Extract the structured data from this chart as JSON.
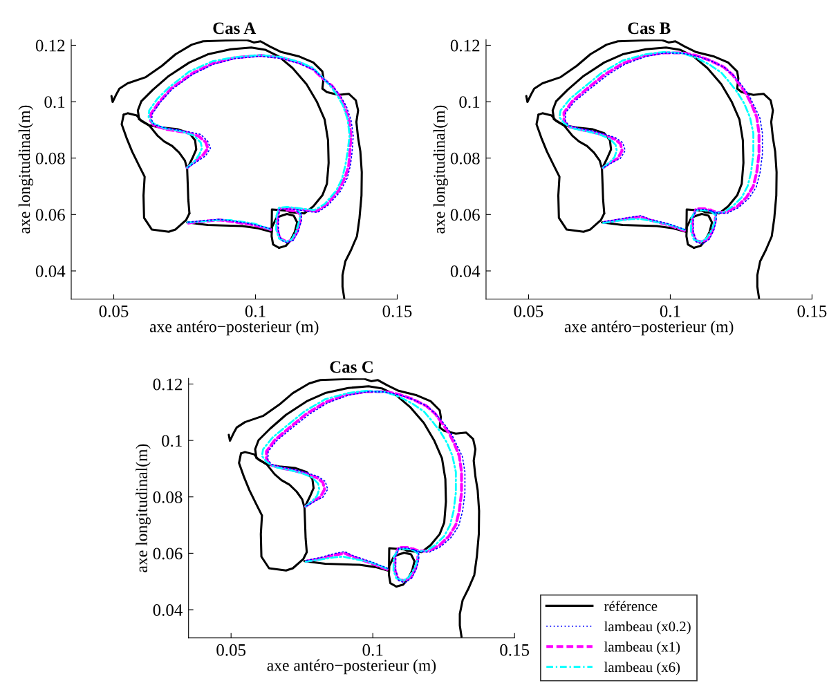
{
  "chart_data": [
    {
      "type": "line",
      "title": "Cas A",
      "xlabel": "axe antéro−posterieur (m)",
      "ylabel": "axe longitudinal(m)",
      "xlim": [
        0.035,
        0.15
      ],
      "ylim": [
        0.03,
        0.122
      ],
      "xticks": [
        0.05,
        0.1,
        0.15
      ],
      "yticks": [
        0.04,
        0.06,
        0.08,
        0.1,
        0.12
      ],
      "marker": "none",
      "series": [
        {
          "color": "#000000",
          "line_style": "solid",
          "x": [
            0.0492,
            0.0496,
            0.0508,
            0.052,
            0.0549,
            0.0613,
            0.067,
            0.0718,
            0.0775,
            0.0815,
            0.0896,
            0.0969,
            0.0994,
            0.1018,
            0.105,
            0.1091,
            0.1155,
            0.1204,
            0.1236,
            0.124,
            0.1236,
            0.1252,
            0.1293,
            0.1329,
            0.1354,
            0.1362,
            0.1356,
            0.1362,
            0.137,
            0.1375,
            0.1374,
            0.1367,
            0.1358,
            0.1337,
            0.1317,
            0.1307,
            0.1307,
            0.1313
          ],
          "values": [
            0.102,
            0.0999,
            0.1024,
            0.1046,
            0.1065,
            0.1087,
            0.1127,
            0.1168,
            0.1202,
            0.1214,
            0.1217,
            0.1219,
            0.121,
            0.1214,
            0.1196,
            0.1176,
            0.116,
            0.1139,
            0.1107,
            0.1083,
            0.1046,
            0.1034,
            0.1024,
            0.1028,
            0.1005,
            0.0969,
            0.0928,
            0.0872,
            0.0823,
            0.075,
            0.0668,
            0.0588,
            0.0523,
            0.0474,
            0.0434,
            0.0385,
            0.0344,
            0.0304
          ]
        },
        {
          "color": "#000000",
          "line_style": "solid",
          "x": [
            0.0589,
            0.0585,
            0.0597,
            0.0638,
            0.0694,
            0.0767,
            0.0832,
            0.0913,
            0.0985,
            0.1034,
            0.1083,
            0.1131,
            0.118,
            0.1216,
            0.1244,
            0.1256,
            0.1258,
            0.1252,
            0.1236,
            0.1204,
            0.1172,
            0.1123,
            0.1111,
            0.1058,
            0.1057
          ],
          "values": [
            0.0941,
            0.0969,
            0.1001,
            0.1042,
            0.1091,
            0.1139,
            0.1168,
            0.1186,
            0.1192,
            0.1184,
            0.116,
            0.1119,
            0.1062,
            0.1001,
            0.0937,
            0.0863,
            0.0783,
            0.0709,
            0.0668,
            0.0629,
            0.0604,
            0.0608,
            0.0614,
            0.0618,
            0.0539
          ]
        },
        {
          "color": "#000000",
          "line_style": "solid",
          "x": [
            0.0759,
            0.0832,
            0.0953,
            0.101,
            0.1057
          ],
          "values": [
            0.0572,
            0.0563,
            0.0559,
            0.0551,
            0.0538
          ]
        },
        {
          "color": "#000000",
          "line_style": "solid",
          "x": [
            0.0589,
            0.0625,
            0.067,
            0.0727,
            0.0767,
            0.0787,
            0.0791,
            0.0779,
            0.0763
          ],
          "values": [
            0.0938,
            0.0916,
            0.0908,
            0.0902,
            0.0888,
            0.0863,
            0.0831,
            0.0803,
            0.077
          ]
        },
        {
          "color": "#000000",
          "line_style": "solid",
          "x": [
            0.0535,
            0.0549,
            0.0581,
            0.0597,
            0.0625,
            0.0654,
            0.0678,
            0.0706,
            0.0731,
            0.0751,
            0.0759,
            0.0761,
            0.0763,
            0.0767,
            0.0755,
            0.0718,
            0.0694,
            0.0634,
            0.0607,
            0.0605,
            0.0609,
            0.0589,
            0.0565,
            0.0545,
            0.0528,
            0.0535
          ],
          "values": [
            0.0954,
            0.0959,
            0.0951,
            0.0932,
            0.0916,
            0.088,
            0.0859,
            0.0843,
            0.0819,
            0.0791,
            0.0762,
            0.0709,
            0.0653,
            0.0604,
            0.058,
            0.0547,
            0.0539,
            0.0547,
            0.0588,
            0.0668,
            0.0734,
            0.0774,
            0.0823,
            0.0872,
            0.092,
            0.0954
          ]
        },
        {
          "color": "#000000",
          "line_style": "solid",
          "x": [
            0.1111,
            0.1135,
            0.1147,
            0.1139,
            0.1123,
            0.1107,
            0.1083,
            0.1062,
            0.1057,
            0.1058,
            0.1074,
            0.1087,
            0.1111
          ],
          "values": [
            0.0602,
            0.0596,
            0.0572,
            0.0539,
            0.0507,
            0.0489,
            0.0482,
            0.0494,
            0.0523,
            0.0555,
            0.0588,
            0.0594,
            0.0602
          ]
        },
        {
          "color": "#0000ff",
          "line_style": "dotted",
          "x": [
            0.0763,
            0.0799,
            0.0824,
            0.0841,
            0.0832,
            0.0807,
            0.0751,
            0.0686,
            0.0642,
            0.0634,
            0.0636,
            0.0666,
            0.0706,
            0.0779,
            0.0852,
            0.0929,
            0.1018,
            0.1091,
            0.1155,
            0.1208,
            0.124,
            0.1273,
            0.1301,
            0.1321,
            0.1337,
            0.1345,
            0.1341,
            0.1335,
            0.1324,
            0.1299,
            0.1256,
            0.122,
            0.1188,
            0.1147,
            0.1111,
            0.1084,
            0.1081,
            0.1081,
            0.1092,
            0.1111,
            0.1133,
            0.115,
            0.1162,
            0.1162,
            0.1147,
            null,
            0.1052,
            0.0994,
            0.0913,
            0.0872,
            0.0815,
            0.0763
          ],
          "values": [
            0.0768,
            0.0791,
            0.0808,
            0.0835,
            0.0859,
            0.0884,
            0.0896,
            0.0906,
            0.0919,
            0.0935,
            0.0957,
            0.1,
            0.1044,
            0.1097,
            0.1133,
            0.1153,
            0.1161,
            0.1153,
            0.1135,
            0.1112,
            0.1081,
            0.1054,
            0.1018,
            0.0983,
            0.0935,
            0.088,
            0.0823,
            0.0774,
            0.073,
            0.0681,
            0.0633,
            0.0608,
            0.061,
            0.0617,
            0.062,
            0.0618,
            0.0588,
            0.0539,
            0.0508,
            0.05,
            0.0508,
            0.0538,
            0.0578,
            0.0602,
            0.061,
            null,
            0.055,
            0.0565,
            0.0578,
            0.0583,
            0.0578,
            0.0573
          ]
        },
        {
          "color": "#ff00ff",
          "line_style": "dashed",
          "x": [
            0.0759,
            0.0791,
            0.0815,
            0.0832,
            0.0824,
            0.0799,
            0.0751,
            0.0686,
            0.0642,
            0.063,
            0.0631,
            0.0662,
            0.0702,
            0.0775,
            0.0848,
            0.0929,
            0.1018,
            0.1091,
            0.1155,
            0.1204,
            0.1236,
            0.1269,
            0.1297,
            0.1313,
            0.1329,
            0.1337,
            0.1333,
            0.1329,
            0.1317,
            0.1293,
            0.1252,
            0.1216,
            0.1188,
            0.1147,
            0.1111,
            0.1083,
            0.1078,
            0.1077,
            0.1087,
            0.1111,
            0.1131,
            0.1147,
            0.1159,
            0.1159,
            0.1143,
            0.1111,
            null,
            0.1054,
            0.0994,
            0.0913,
            0.0872,
            0.0815,
            0.0763
          ],
          "values": [
            0.0766,
            0.0792,
            0.0811,
            0.0835,
            0.0857,
            0.0878,
            0.0892,
            0.0902,
            0.0916,
            0.0932,
            0.0957,
            0.1001,
            0.1046,
            0.1099,
            0.1135,
            0.1156,
            0.1164,
            0.1156,
            0.1138,
            0.1115,
            0.1083,
            0.1057,
            0.102,
            0.0985,
            0.0937,
            0.088,
            0.0823,
            0.0774,
            0.0734,
            0.0685,
            0.0637,
            0.0612,
            0.0614,
            0.062,
            0.0623,
            0.062,
            0.0588,
            0.0547,
            0.0515,
            0.0503,
            0.0511,
            0.0539,
            0.058,
            0.06,
            0.0612,
            0.0616,
            null,
            0.0547,
            0.0563,
            0.0576,
            0.0581,
            0.0576,
            0.057
          ]
        },
        {
          "color": "#00ffff",
          "line_style": "dashdot",
          "x": [
            0.0759,
            0.0787,
            0.0803,
            0.0811,
            0.0807,
            0.0783,
            0.0735,
            0.0678,
            0.0638,
            0.0623,
            0.0625,
            0.0654,
            0.0694,
            0.0767,
            0.0848,
            0.0929,
            0.1018,
            0.1091,
            0.1155,
            0.1204,
            0.1236,
            0.1265,
            0.1289,
            0.1309,
            0.1325,
            0.1332,
            0.1325,
            0.1317,
            0.1305,
            0.1285,
            0.1244,
            0.1208,
            0.118,
            0.1147,
            0.1111,
            0.1083,
            0.1074,
            0.1073,
            0.1083,
            0.1107,
            0.1127,
            0.1143,
            0.1155,
            0.1159,
            0.1147,
            null,
            0.105,
            0.0994,
            0.0913,
            0.0872,
            0.0815,
            0.076
          ],
          "values": [
            0.0766,
            0.0791,
            0.0815,
            0.0835,
            0.0855,
            0.088,
            0.0896,
            0.0906,
            0.0924,
            0.0945,
            0.0969,
            0.101,
            0.105,
            0.1107,
            0.1143,
            0.1158,
            0.1165,
            0.1158,
            0.1141,
            0.1119,
            0.1087,
            0.1054,
            0.1022,
            0.0985,
            0.0937,
            0.088,
            0.0823,
            0.0774,
            0.0726,
            0.0685,
            0.0637,
            0.0616,
            0.0619,
            0.0623,
            0.0627,
            0.0624,
            0.0596,
            0.0547,
            0.0515,
            0.0503,
            0.0511,
            0.0539,
            0.058,
            0.0604,
            0.0616,
            null,
            0.0549,
            0.0568,
            0.058,
            0.0581,
            0.0576,
            0.0572
          ]
        }
      ]
    },
    {
      "type": "line",
      "title": "Cas B",
      "xlabel": "axe antéro−posterieur (m)",
      "ylabel": "axe longitudinal(m)",
      "xlim": [
        0.035,
        0.15
      ],
      "ylim": [
        0.03,
        0.122
      ],
      "xticks": [
        0.05,
        0.1,
        0.15
      ],
      "yticks": [
        0.04,
        0.06,
        0.08,
        0.1,
        0.12
      ],
      "marker": "none",
      "series": [
        {
          "color": "#000000",
          "line_style": "solid",
          "x": [
            0.0492,
            0.0496,
            0.0508,
            0.052,
            0.0549,
            0.0613,
            0.067,
            0.0718,
            0.0775,
            0.0815,
            0.0896,
            0.0969,
            0.0994,
            0.1018,
            0.105,
            0.1091,
            0.1155,
            0.1204,
            0.1236,
            0.124,
            0.1236,
            0.1252,
            0.1293,
            0.1329,
            0.1354,
            0.1362,
            0.1356,
            0.1362,
            0.137,
            0.1375,
            0.1374,
            0.1367,
            0.1358,
            0.1337,
            0.1317,
            0.1307,
            0.1307,
            0.1313
          ],
          "values": [
            0.102,
            0.0999,
            0.1024,
            0.1046,
            0.1065,
            0.1087,
            0.1127,
            0.1168,
            0.1202,
            0.1214,
            0.1217,
            0.1219,
            0.121,
            0.1214,
            0.1196,
            0.1176,
            0.116,
            0.1139,
            0.1107,
            0.1083,
            0.1046,
            0.1034,
            0.1024,
            0.1028,
            0.1005,
            0.0969,
            0.0928,
            0.0872,
            0.0823,
            0.075,
            0.0668,
            0.0588,
            0.0523,
            0.0474,
            0.0434,
            0.0385,
            0.0344,
            0.0304
          ]
        },
        {
          "color": "#000000",
          "line_style": "solid",
          "x": [
            0.0589,
            0.0585,
            0.0597,
            0.0638,
            0.0694,
            0.0767,
            0.0832,
            0.0913,
            0.0985,
            0.1034,
            0.1083,
            0.1131,
            0.118,
            0.1216,
            0.1244,
            0.1256,
            0.1258,
            0.1252,
            0.1236,
            0.1204,
            0.1172,
            0.1123,
            0.1111,
            0.1058,
            0.1057
          ],
          "values": [
            0.0941,
            0.0969,
            0.1001,
            0.1042,
            0.1091,
            0.1139,
            0.1168,
            0.1186,
            0.1192,
            0.1184,
            0.116,
            0.1119,
            0.1062,
            0.1001,
            0.0937,
            0.0863,
            0.0783,
            0.0709,
            0.0668,
            0.0629,
            0.0604,
            0.0608,
            0.0614,
            0.0618,
            0.0539
          ]
        },
        {
          "color": "#000000",
          "line_style": "solid",
          "x": [
            0.0759,
            0.0832,
            0.0953,
            0.101,
            0.1057
          ],
          "values": [
            0.0572,
            0.0563,
            0.0559,
            0.0551,
            0.0538
          ]
        },
        {
          "color": "#000000",
          "line_style": "solid",
          "x": [
            0.0589,
            0.0625,
            0.067,
            0.0727,
            0.0767,
            0.0787,
            0.0791,
            0.0779,
            0.0763
          ],
          "values": [
            0.0938,
            0.0916,
            0.0908,
            0.0902,
            0.0888,
            0.0863,
            0.0831,
            0.0803,
            0.077
          ]
        },
        {
          "color": "#000000",
          "line_style": "solid",
          "x": [
            0.0535,
            0.0549,
            0.0581,
            0.0597,
            0.0625,
            0.0654,
            0.0678,
            0.0706,
            0.0731,
            0.0751,
            0.0759,
            0.0761,
            0.0763,
            0.0767,
            0.0755,
            0.0718,
            0.0694,
            0.0634,
            0.0607,
            0.0605,
            0.0609,
            0.0589,
            0.0565,
            0.0545,
            0.0528,
            0.0535
          ],
          "values": [
            0.0954,
            0.0959,
            0.0951,
            0.0932,
            0.0916,
            0.088,
            0.0859,
            0.0843,
            0.0819,
            0.0791,
            0.0762,
            0.0709,
            0.0653,
            0.0604,
            0.058,
            0.0547,
            0.0539,
            0.0547,
            0.0588,
            0.0668,
            0.0734,
            0.0774,
            0.0823,
            0.0872,
            0.092,
            0.0954
          ]
        },
        {
          "color": "#000000",
          "line_style": "solid",
          "x": [
            0.1111,
            0.1135,
            0.1147,
            0.1139,
            0.1123,
            0.1107,
            0.1083,
            0.1062,
            0.1057,
            0.1058,
            0.1074,
            0.1087,
            0.1111
          ],
          "values": [
            0.0602,
            0.0596,
            0.0572,
            0.0539,
            0.0507,
            0.0489,
            0.0482,
            0.0494,
            0.0523,
            0.0555,
            0.0588,
            0.0594,
            0.0602
          ]
        },
        {
          "color": "#0000ff",
          "line_style": "dotted",
          "x": [
            0.0767,
            0.0799,
            0.0824,
            0.0841,
            0.0832,
            0.0807,
            0.0767,
            0.0727,
            0.0678,
            0.0642,
            0.063,
            0.0631,
            0.0662,
            0.071,
            0.0775,
            0.084,
            0.0913,
            0.0977,
            0.1042,
            0.1095,
            0.1143,
            0.1192,
            0.1224,
            0.1251,
            0.1277,
            0.1297,
            0.1316,
            0.1325,
            0.1325,
            0.1317,
            0.1303,
            0.1277,
            0.124,
            0.12,
            0.1164,
            0.1123,
            0.1092,
            0.1081,
            0.1081,
            0.1092,
            0.1113,
            0.1138,
            0.1154,
            0.1162,
            0.1162,
            0.1143,
            null,
            0.1052,
            0.0994,
            0.0929,
            0.0896,
            0.0864,
            0.0815,
            0.0767
          ],
          "values": [
            0.0768,
            0.0786,
            0.0799,
            0.0827,
            0.0855,
            0.0872,
            0.0886,
            0.0896,
            0.0906,
            0.0915,
            0.0932,
            0.0961,
            0.1,
            0.104,
            0.1092,
            0.1133,
            0.116,
            0.1172,
            0.1172,
            0.1161,
            0.1145,
            0.1121,
            0.1092,
            0.106,
            0.1024,
            0.0983,
            0.0943,
            0.0888,
            0.0815,
            0.075,
            0.0697,
            0.0657,
            0.0624,
            0.0604,
            0.0606,
            0.0618,
            0.0619,
            0.0588,
            0.0539,
            0.0503,
            0.0495,
            0.0513,
            0.0546,
            0.0578,
            0.0602,
            0.0614,
            null,
            0.0547,
            0.0567,
            0.0583,
            0.0596,
            0.0591,
            0.0583,
            0.0575
          ]
        },
        {
          "color": "#ff00ff",
          "line_style": "dashed",
          "x": [
            0.0763,
            0.0791,
            0.0815,
            0.083,
            0.0824,
            0.0803,
            0.0767,
            0.0727,
            0.0678,
            0.0642,
            0.0625,
            0.0625,
            0.0654,
            0.0702,
            0.0767,
            0.0832,
            0.0913,
            0.0977,
            0.1042,
            0.1091,
            0.1139,
            0.1188,
            0.122,
            0.1244,
            0.1269,
            0.1289,
            0.1305,
            0.1313,
            0.1313,
            0.1305,
            0.1293,
            0.1269,
            0.1236,
            0.1196,
            0.1164,
            0.1123,
            0.1091,
            0.1078,
            0.1078,
            0.1091,
            0.1111,
            0.1135,
            0.1151,
            0.1159,
            0.1159,
            0.1143,
            null,
            0.105,
            0.0994,
            0.0929,
            0.0896,
            0.0864,
            0.0815,
            0.0767
          ],
          "values": [
            0.0766,
            0.0786,
            0.0799,
            0.0827,
            0.0851,
            0.0868,
            0.0881,
            0.0892,
            0.0902,
            0.0912,
            0.093,
            0.0961,
            0.1001,
            0.1042,
            0.1095,
            0.1135,
            0.1164,
            0.1173,
            0.1173,
            0.1164,
            0.1147,
            0.1123,
            0.1095,
            0.1062,
            0.1026,
            0.0985,
            0.0945,
            0.0888,
            0.0815,
            0.075,
            0.0701,
            0.0661,
            0.0629,
            0.0608,
            0.0608,
            0.062,
            0.062,
            0.0588,
            0.0539,
            0.0507,
            0.0503,
            0.0515,
            0.0547,
            0.058,
            0.0604,
            0.0616,
            null,
            0.0543,
            0.0563,
            0.058,
            0.0592,
            0.0588,
            0.058,
            0.0572
          ]
        },
        {
          "color": "#00ffff",
          "line_style": "dashdot",
          "x": [
            0.0763,
            0.0787,
            0.0803,
            0.0811,
            0.0807,
            0.0787,
            0.0751,
            0.0702,
            0.0654,
            0.0625,
            0.0609,
            0.0613,
            0.0646,
            0.0694,
            0.0759,
            0.0832,
            0.0913,
            0.0977,
            0.1042,
            0.1091,
            0.1139,
            0.118,
            0.1208,
            0.1236,
            0.1261,
            0.1281,
            0.1293,
            0.1293,
            0.1285,
            0.1273,
            0.1252,
            0.122,
            0.1188,
            0.1159,
            0.1123,
            0.1091,
            0.1074,
            0.1073,
            0.1083,
            0.1107,
            0.1127,
            0.1147,
            0.1159,
            0.1162,
            0.1143,
            null,
            0.105,
            0.0994,
            0.0929,
            0.0896,
            0.0864,
            0.0815,
            0.0763
          ],
          "values": [
            0.0766,
            0.0786,
            0.0803,
            0.0827,
            0.0847,
            0.0868,
            0.0884,
            0.0896,
            0.0906,
            0.0924,
            0.0945,
            0.0969,
            0.101,
            0.105,
            0.1103,
            0.1146,
            0.1168,
            0.1176,
            0.1172,
            0.1156,
            0.1131,
            0.1103,
            0.107,
            0.1034,
            0.0993,
            0.0945,
            0.0888,
            0.0815,
            0.075,
            0.0701,
            0.0661,
            0.0629,
            0.0608,
            0.0606,
            0.0616,
            0.0614,
            0.0588,
            0.0539,
            0.0511,
            0.0503,
            0.0515,
            0.0547,
            0.058,
            0.0596,
            0.0612,
            null,
            0.0546,
            0.0565,
            0.0578,
            0.0584,
            0.0584,
            0.0578,
            0.057
          ]
        }
      ]
    },
    {
      "type": "line",
      "title": "Cas C",
      "xlabel": "axe antéro−posterieur (m)",
      "ylabel": "axe longitudinal(m)",
      "xlim": [
        0.035,
        0.15
      ],
      "ylim": [
        0.03,
        0.122
      ],
      "xticks": [
        0.05,
        0.1,
        0.15
      ],
      "yticks": [
        0.04,
        0.06,
        0.08,
        0.1,
        0.12
      ],
      "marker": "none",
      "legend": "bottom right",
      "series": [
        {
          "name": "référence",
          "color": "#000000",
          "line_style": "solid",
          "x": [
            0.0492,
            0.0496,
            0.0508,
            0.052,
            0.0549,
            0.0613,
            0.067,
            0.0718,
            0.0775,
            0.0815,
            0.0896,
            0.0969,
            0.0994,
            0.1018,
            0.105,
            0.1091,
            0.1155,
            0.1204,
            0.1236,
            0.124,
            0.1236,
            0.1252,
            0.1293,
            0.1329,
            0.1354,
            0.1362,
            0.1356,
            0.1362,
            0.137,
            0.1375,
            0.1374,
            0.1367,
            0.1358,
            0.1337,
            0.1317,
            0.1307,
            0.1307,
            0.1313
          ],
          "values": [
            0.102,
            0.0999,
            0.1024,
            0.1046,
            0.1065,
            0.1087,
            0.1127,
            0.1168,
            0.1202,
            0.1214,
            0.1217,
            0.1219,
            0.121,
            0.1214,
            0.1196,
            0.1176,
            0.116,
            0.1139,
            0.1107,
            0.1083,
            0.1046,
            0.1034,
            0.1024,
            0.1028,
            0.1005,
            0.0969,
            0.0928,
            0.0872,
            0.0823,
            0.075,
            0.0668,
            0.0588,
            0.0523,
            0.0474,
            0.0434,
            0.0385,
            0.0344,
            0.0304
          ]
        },
        {
          "color": "#000000",
          "line_style": "solid",
          "x": [
            0.0589,
            0.0585,
            0.0597,
            0.0638,
            0.0694,
            0.0767,
            0.0832,
            0.0913,
            0.0985,
            0.1034,
            0.1083,
            0.1131,
            0.118,
            0.1216,
            0.1244,
            0.1256,
            0.1258,
            0.1252,
            0.1236,
            0.1204,
            0.1172,
            0.1123,
            0.1111,
            0.1058,
            0.1057
          ],
          "values": [
            0.0941,
            0.0969,
            0.1001,
            0.1042,
            0.1091,
            0.1139,
            0.1168,
            0.1186,
            0.1192,
            0.1184,
            0.116,
            0.1119,
            0.1062,
            0.1001,
            0.0937,
            0.0863,
            0.0783,
            0.0709,
            0.0668,
            0.0629,
            0.0604,
            0.0608,
            0.0614,
            0.0618,
            0.0539
          ]
        },
        {
          "color": "#000000",
          "line_style": "solid",
          "x": [
            0.0759,
            0.0832,
            0.0953,
            0.101,
            0.1057
          ],
          "values": [
            0.0572,
            0.0563,
            0.0559,
            0.0551,
            0.0538
          ]
        },
        {
          "color": "#000000",
          "line_style": "solid",
          "x": [
            0.0589,
            0.0625,
            0.067,
            0.0727,
            0.0767,
            0.0787,
            0.0791,
            0.0779,
            0.0763
          ],
          "values": [
            0.0938,
            0.0916,
            0.0908,
            0.0902,
            0.0888,
            0.0863,
            0.0831,
            0.0803,
            0.077
          ]
        },
        {
          "color": "#000000",
          "line_style": "solid",
          "x": [
            0.0535,
            0.0549,
            0.0581,
            0.0597,
            0.0625,
            0.0654,
            0.0678,
            0.0706,
            0.0731,
            0.0751,
            0.0759,
            0.0761,
            0.0763,
            0.0767,
            0.0755,
            0.0718,
            0.0694,
            0.0634,
            0.0607,
            0.0605,
            0.0609,
            0.0589,
            0.0565,
            0.0545,
            0.0528,
            0.0535
          ],
          "values": [
            0.0954,
            0.0959,
            0.0951,
            0.0932,
            0.0916,
            0.088,
            0.0859,
            0.0843,
            0.0819,
            0.0791,
            0.0762,
            0.0709,
            0.0653,
            0.0604,
            0.058,
            0.0547,
            0.0539,
            0.0547,
            0.0588,
            0.0668,
            0.0734,
            0.0774,
            0.0823,
            0.0872,
            0.092,
            0.0954
          ]
        },
        {
          "color": "#000000",
          "line_style": "solid",
          "x": [
            0.1111,
            0.1135,
            0.1147,
            0.1139,
            0.1123,
            0.1107,
            0.1083,
            0.1062,
            0.1057,
            0.1058,
            0.1074,
            0.1087,
            0.1111
          ],
          "values": [
            0.0602,
            0.0596,
            0.0572,
            0.0539,
            0.0507,
            0.0489,
            0.0482,
            0.0494,
            0.0523,
            0.0555,
            0.0588,
            0.0594,
            0.0602
          ]
        },
        {
          "name": "lambeau (x0.2)",
          "color": "#0000ff",
          "line_style": "dotted",
          "x": [
            0.0767,
            0.0799,
            0.0824,
            0.0841,
            0.0832,
            0.0807,
            0.0767,
            0.0727,
            0.0678,
            0.0642,
            0.063,
            0.0631,
            0.0662,
            0.071,
            0.0775,
            0.084,
            0.0913,
            0.0977,
            0.1042,
            0.1095,
            0.1143,
            0.1192,
            0.1224,
            0.1251,
            0.1277,
            0.1297,
            0.1316,
            0.1325,
            0.1325,
            0.1317,
            0.1303,
            0.1277,
            0.124,
            0.12,
            0.1164,
            0.1123,
            0.1092,
            0.1081,
            0.1081,
            0.1092,
            0.1113,
            0.1138,
            0.1154,
            0.1162,
            0.1162,
            0.1143,
            null,
            0.1052,
            0.0994,
            0.0929,
            0.0901,
            0.0864,
            0.0815,
            0.0767
          ],
          "values": [
            0.0768,
            0.0786,
            0.0799,
            0.0827,
            0.0855,
            0.0872,
            0.0886,
            0.0896,
            0.0906,
            0.0915,
            0.0932,
            0.0961,
            0.1,
            0.104,
            0.1092,
            0.1133,
            0.116,
            0.1172,
            0.1172,
            0.1161,
            0.1145,
            0.1121,
            0.1092,
            0.106,
            0.1024,
            0.0983,
            0.0943,
            0.0888,
            0.0815,
            0.075,
            0.0697,
            0.0657,
            0.0624,
            0.0604,
            0.0606,
            0.0618,
            0.0619,
            0.0588,
            0.0539,
            0.0503,
            0.0495,
            0.0513,
            0.0546,
            0.0578,
            0.0602,
            0.0614,
            null,
            0.0547,
            0.057,
            0.0592,
            0.0606,
            0.0599,
            0.0585,
            0.0575
          ]
        },
        {
          "name": "lambeau (x1)",
          "color": "#ff00ff",
          "line_style": "dashed",
          "x": [
            0.0763,
            0.0791,
            0.0815,
            0.083,
            0.0824,
            0.0803,
            0.0767,
            0.0727,
            0.0678,
            0.0642,
            0.0625,
            0.0625,
            0.0654,
            0.0702,
            0.0767,
            0.0832,
            0.0913,
            0.0977,
            0.1042,
            0.1091,
            0.1139,
            0.1188,
            0.122,
            0.1244,
            0.1269,
            0.1289,
            0.1305,
            0.1313,
            0.1313,
            0.1305,
            0.1293,
            0.1269,
            0.1236,
            0.1196,
            0.1164,
            0.1123,
            0.1091,
            0.1078,
            0.1078,
            0.1091,
            0.1111,
            0.1135,
            0.1151,
            0.1159,
            0.1159,
            0.1143,
            null,
            0.105,
            0.0994,
            0.0929,
            0.0901,
            0.0864,
            0.0815,
            0.0767
          ],
          "values": [
            0.0766,
            0.0786,
            0.0799,
            0.0827,
            0.0851,
            0.0868,
            0.0881,
            0.0892,
            0.0902,
            0.0912,
            0.093,
            0.0961,
            0.1001,
            0.1042,
            0.1095,
            0.1135,
            0.1164,
            0.1173,
            0.1173,
            0.1164,
            0.1147,
            0.1123,
            0.1095,
            0.1062,
            0.1026,
            0.0985,
            0.0945,
            0.0888,
            0.0815,
            0.075,
            0.0701,
            0.0661,
            0.0629,
            0.0608,
            0.0608,
            0.062,
            0.062,
            0.0588,
            0.0539,
            0.0507,
            0.0503,
            0.0515,
            0.0547,
            0.058,
            0.0604,
            0.0616,
            null,
            0.0543,
            0.0565,
            0.0588,
            0.06,
            0.0594,
            0.0581,
            0.0572
          ]
        },
        {
          "name": "lambeau (x6)",
          "color": "#00ffff",
          "line_style": "dashdot",
          "x": [
            0.0763,
            0.0787,
            0.0803,
            0.0811,
            0.0807,
            0.0787,
            0.0751,
            0.0702,
            0.0654,
            0.0625,
            0.0609,
            0.0613,
            0.0646,
            0.0694,
            0.0759,
            0.0832,
            0.0913,
            0.0977,
            0.1042,
            0.1091,
            0.1139,
            0.118,
            0.1208,
            0.1236,
            0.1261,
            0.1281,
            0.1293,
            0.1293,
            0.1285,
            0.1273,
            0.1252,
            0.122,
            0.1188,
            0.1159,
            0.1123,
            0.1091,
            0.1074,
            0.1073,
            0.1083,
            0.1107,
            0.1127,
            0.1147,
            0.1159,
            0.1162,
            0.1143,
            null,
            0.105,
            0.0994,
            0.0929,
            0.0896,
            0.0864,
            0.0815,
            0.0763
          ],
          "values": [
            0.0766,
            0.0786,
            0.0803,
            0.0827,
            0.0847,
            0.0868,
            0.0884,
            0.0896,
            0.0906,
            0.0924,
            0.0945,
            0.0969,
            0.101,
            0.105,
            0.1103,
            0.1146,
            0.1168,
            0.1176,
            0.1172,
            0.1156,
            0.1131,
            0.1103,
            0.107,
            0.1034,
            0.0993,
            0.0945,
            0.0888,
            0.0815,
            0.075,
            0.0701,
            0.0661,
            0.0629,
            0.0608,
            0.0606,
            0.0616,
            0.0614,
            0.0588,
            0.0539,
            0.0511,
            0.0503,
            0.0515,
            0.0547,
            0.058,
            0.0596,
            0.0612,
            null,
            0.0546,
            0.0568,
            0.0581,
            0.0588,
            0.0586,
            0.0578,
            0.057
          ]
        }
      ]
    }
  ]
}
